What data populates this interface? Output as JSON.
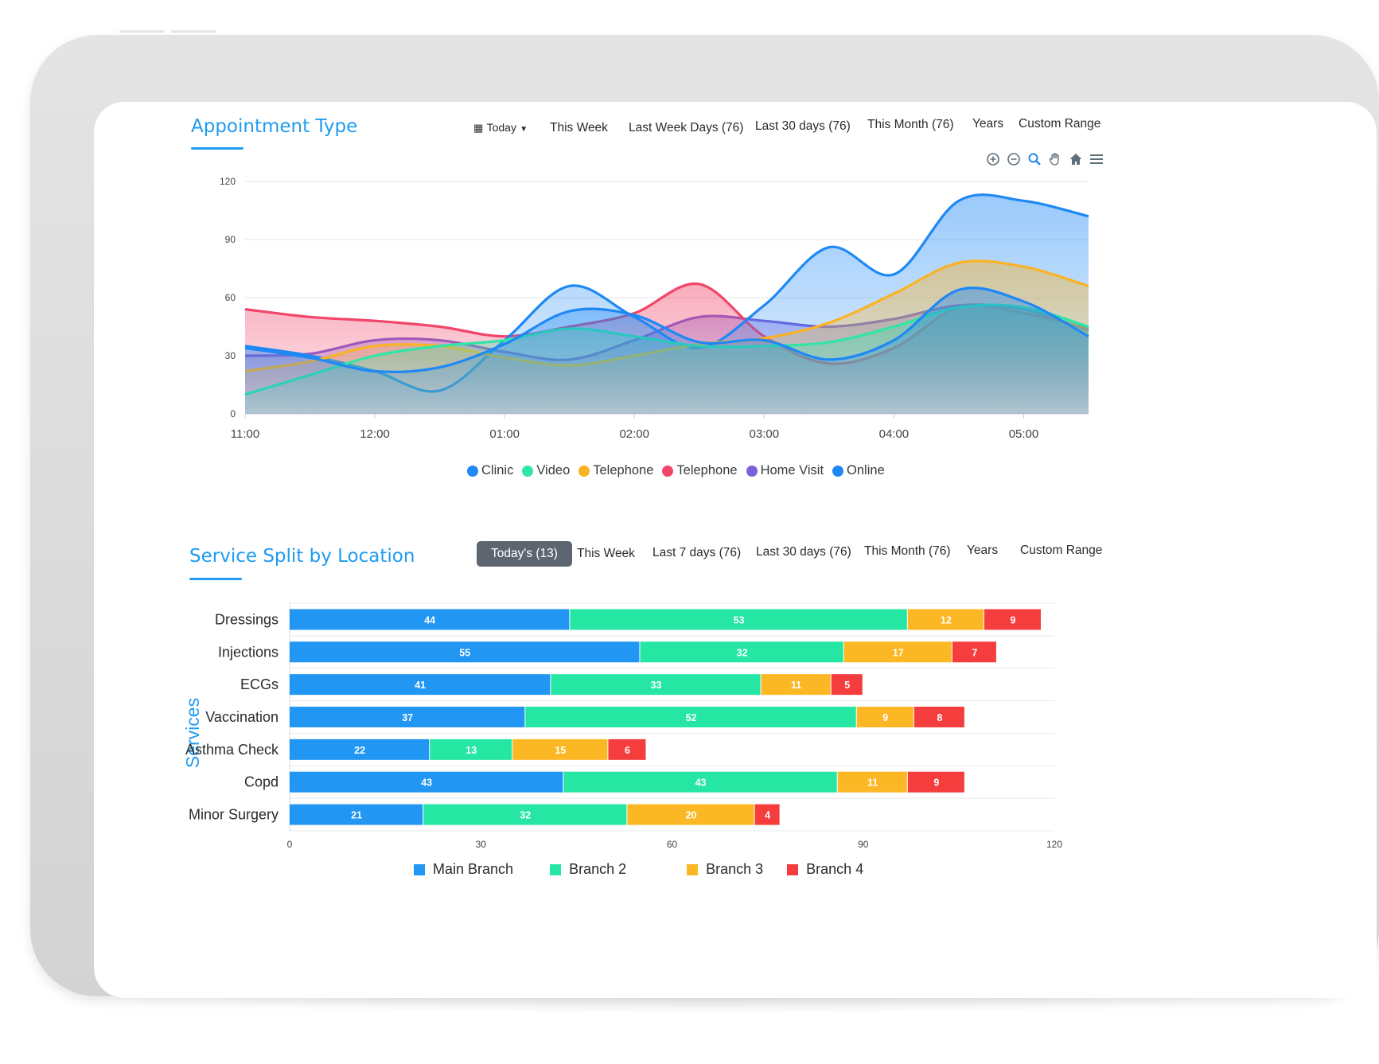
{
  "colors": {
    "accent": "#1e9bf0",
    "clinic": "#1e88f5",
    "video": "#2ee6a6",
    "telephone_orange": "#fbb224",
    "telephone_red": "#f2456a",
    "home_visit": "#7b5fdb",
    "online": "#1e88f5",
    "main_branch": "#2196f3",
    "branch_2": "#26e6a4",
    "branch_3": "#fbb824",
    "branch_4": "#f53d3d"
  },
  "appointment": {
    "title": "Appointment Type",
    "today_label": "Today",
    "filters": [
      "This Week",
      "Last Week Days (76)",
      "Last 30 days (76)",
      "This Month (76)",
      "Years",
      "Custom Range"
    ],
    "toolbar_icons": [
      "zoom-in-icon",
      "zoom-out-icon",
      "magnifier-icon",
      "pan-hand-icon",
      "home-icon",
      "menu-icon"
    ]
  },
  "service": {
    "title": "Service Split by Location",
    "active_filter": "Today's (13)",
    "filters": [
      "This Week",
      "Last 7 days (76)",
      "Last 30 days (76)",
      "This Month (76)",
      "Years",
      "Custom Range"
    ]
  },
  "chart_data": [
    {
      "type": "area",
      "title": "Appointment Type",
      "x": [
        "11:00",
        "11:30",
        "12:00",
        "12:30",
        "01:00",
        "01:30",
        "02:00",
        "02:30",
        "03:00",
        "03:30",
        "04:00",
        "04:30",
        "05:00",
        "05:30"
      ],
      "xlabel": "",
      "ylabel": "",
      "ylim": [
        0,
        120
      ],
      "yticks": [
        0,
        30,
        60,
        90,
        120
      ],
      "xticks": [
        "11:00",
        "12:00",
        "01:00",
        "02:00",
        "03:00",
        "04:00",
        "05:00"
      ],
      "grid": true,
      "legend_position": "bottom",
      "series": [
        {
          "name": "Clinic",
          "values": [
            35,
            30,
            22,
            12,
            38,
            66,
            50,
            34,
            56,
            86,
            72,
            110,
            110,
            102
          ]
        },
        {
          "name": "Video",
          "values": [
            10,
            20,
            30,
            35,
            38,
            44,
            40,
            35,
            35,
            37,
            45,
            55,
            55,
            45
          ]
        },
        {
          "name": "Telephone",
          "values": [
            22,
            27,
            35,
            35,
            29,
            25,
            30,
            36,
            39,
            47,
            62,
            78,
            76,
            66
          ]
        },
        {
          "name": "Telephone",
          "values": [
            54,
            50,
            48,
            45,
            40,
            45,
            52,
            67,
            40,
            26,
            34,
            55,
            52,
            44
          ]
        },
        {
          "name": "Home Visit",
          "values": [
            30,
            31,
            38,
            38,
            32,
            28,
            38,
            50,
            48,
            45,
            49,
            56,
            54,
            43
          ]
        },
        {
          "name": "Online",
          "values": [
            34,
            29,
            22,
            24,
            36,
            53,
            51,
            37,
            38,
            28,
            38,
            64,
            58,
            40
          ]
        }
      ]
    },
    {
      "type": "bar",
      "orientation": "horizontal",
      "stacked": true,
      "title": "Service Split by Location",
      "ylabel": "Services",
      "xlabel": "",
      "xlim": [
        0,
        120
      ],
      "xticks": [
        0,
        30,
        60,
        90,
        120
      ],
      "grid": true,
      "legend_position": "bottom",
      "categories": [
        "Dressings",
        "Injections",
        "ECGs",
        "Vaccination",
        "Asthma Check",
        "Copd",
        "Minor Surgery"
      ],
      "series": [
        {
          "name": "Main Branch",
          "values": [
            44,
            55,
            41,
            37,
            22,
            43,
            21
          ]
        },
        {
          "name": "Branch 2",
          "values": [
            53,
            32,
            33,
            52,
            13,
            43,
            32
          ]
        },
        {
          "name": "Branch 3",
          "values": [
            12,
            17,
            11,
            9,
            15,
            11,
            20
          ]
        },
        {
          "name": "Branch 4",
          "values": [
            9,
            7,
            5,
            8,
            6,
            9,
            4
          ]
        }
      ]
    }
  ]
}
